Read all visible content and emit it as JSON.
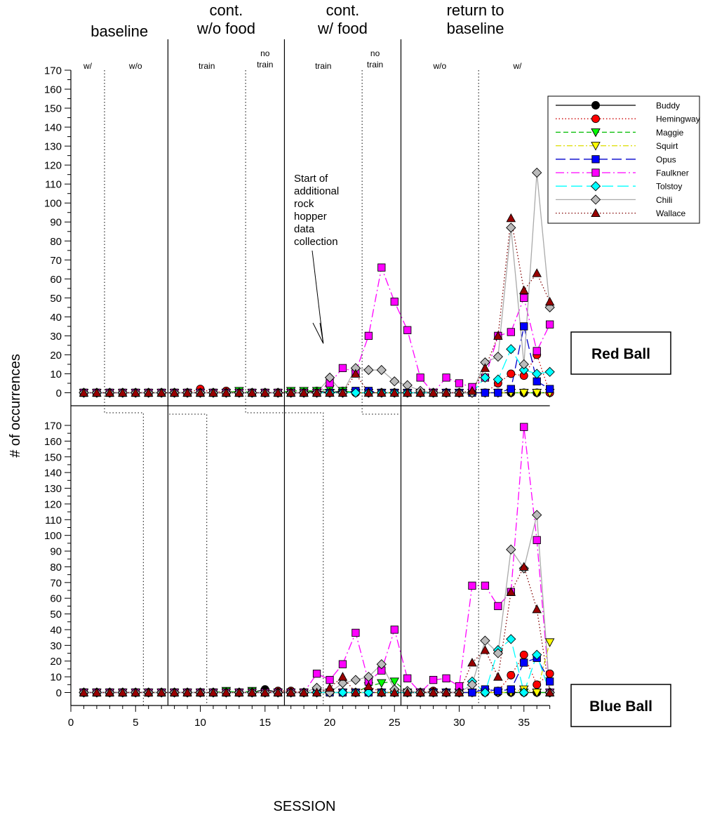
{
  "chart_data": {
    "type": "line",
    "xlabel": "SESSION",
    "ylabel": "# of occurrences",
    "xlim": [
      0,
      37
    ],
    "x_ticks": [
      0,
      5,
      10,
      15,
      20,
      25,
      30,
      35
    ],
    "ylim": [
      -6,
      170
    ],
    "y_ticks": [
      0,
      10,
      20,
      30,
      40,
      50,
      60,
      70,
      80,
      90,
      100,
      110,
      120,
      130,
      140,
      150,
      160,
      170
    ],
    "phases": [
      {
        "label": "baseline",
        "start": 0,
        "end": 7.5
      },
      {
        "label": "cont.\nw/o food",
        "start": 7.5,
        "end": 16.5
      },
      {
        "label": "cont.\nw/ food",
        "start": 16.5,
        "end": 25.5
      },
      {
        "label": "return to\nbaseline",
        "start": 25.5,
        "end": 37
      }
    ],
    "phase_boundaries": [
      7.5,
      16.5,
      25.5
    ],
    "subphases": [
      {
        "label": "w/",
        "center": 1.3
      },
      {
        "label": "w/o",
        "center": 5
      },
      {
        "label": "train",
        "center": 10.5
      },
      {
        "label": "no\ntrain",
        "center": 15
      },
      {
        "label": "train",
        "center": 19.5
      },
      {
        "label": "no\ntrain",
        "center": 23.5
      },
      {
        "label": "w/o",
        "center": 28.5
      },
      {
        "label": "w/",
        "center": 34.5
      }
    ],
    "annotation": {
      "text": "Start of\nadditional\nrock\nhopper\ndata\ncollection",
      "arrow_to_x": 19.5,
      "arrow_to_y": 26
    },
    "series": [
      {
        "name": "Buddy",
        "color": "#000000",
        "fill": "#000000",
        "marker": "circle",
        "dash": ""
      },
      {
        "name": "Hemingway",
        "color": "#cc0000",
        "fill": "#ff0000",
        "marker": "circle",
        "dash": "1.5,3"
      },
      {
        "name": "Maggie",
        "color": "#00bb00",
        "fill": "#00ff00",
        "marker": "triangle-down",
        "dash": "7,4"
      },
      {
        "name": "Squirt",
        "color": "#dddd00",
        "fill": "#ffff00",
        "marker": "triangle-down",
        "dash": "8,3,2,3"
      },
      {
        "name": "Opus",
        "color": "#0000cc",
        "fill": "#0000ff",
        "marker": "square",
        "dash": "14,6"
      },
      {
        "name": "Faulkner",
        "color": "#ff00ff",
        "fill": "#ff00ff",
        "marker": "square",
        "dash": "12,4,2,4"
      },
      {
        "name": "Tolstoy",
        "color": "#00ffff",
        "fill": "#00ffff",
        "marker": "diamond",
        "dash": "16,6"
      },
      {
        "name": "Chili",
        "color": "#aaaaaa",
        "fill": "#bbbbbb",
        "marker": "diamond",
        "dash": ""
      },
      {
        "name": "Wallace",
        "color": "#800000",
        "fill": "#990000",
        "marker": "triangle-up",
        "dash": "1.5,3"
      }
    ],
    "panels": [
      {
        "label": "Red Ball",
        "data": {
          "Buddy": [
            0,
            0,
            0,
            0,
            0,
            0,
            0,
            0,
            0,
            0,
            0,
            0,
            0,
            0,
            0,
            0,
            0,
            0,
            1,
            0,
            1,
            0,
            0,
            0,
            0,
            0,
            0,
            0,
            0,
            0,
            0,
            0,
            0,
            0,
            0,
            0,
            0
          ],
          "Hemingway": [
            0,
            0,
            0,
            0,
            0,
            0,
            0,
            0,
            0,
            2,
            0,
            1,
            0,
            0,
            0,
            0,
            0,
            0,
            0,
            0,
            0,
            0,
            0,
            0,
            0,
            0,
            0,
            0,
            0,
            0,
            0,
            0,
            5,
            10,
            9,
            20,
            0
          ],
          "Maggie": [
            0,
            0,
            0,
            0,
            0,
            0,
            0,
            0,
            0,
            0,
            0,
            0,
            1,
            0,
            0,
            0,
            1,
            1,
            1,
            2,
            1,
            0,
            0,
            0,
            0,
            0,
            0,
            0,
            0,
            0,
            0,
            0,
            0,
            0,
            0,
            0,
            0
          ],
          "Squirt": [
            0,
            0,
            0,
            0,
            0,
            0,
            0,
            0,
            0,
            0,
            0,
            0,
            0,
            0,
            0,
            0,
            0,
            0,
            0,
            0,
            0,
            0,
            0,
            0,
            0,
            0,
            0,
            0,
            0,
            0,
            0,
            0,
            0,
            0,
            0,
            0,
            0
          ],
          "Opus": [
            0,
            0,
            0,
            0,
            0,
            0,
            0,
            0,
            0,
            0,
            0,
            0,
            0,
            0,
            0,
            0,
            0,
            0,
            0,
            0,
            0,
            1,
            1,
            0,
            0,
            0,
            0,
            0,
            0,
            0,
            0,
            0,
            0,
            2,
            35,
            6,
            2
          ],
          "Faulkner": [
            0,
            0,
            0,
            0,
            0,
            0,
            0,
            0,
            0,
            0,
            0,
            0,
            0,
            0,
            0,
            0,
            0,
            0,
            0,
            5,
            13,
            11,
            30,
            66,
            48,
            33,
            8,
            0,
            8,
            5,
            3,
            8,
            30,
            32,
            50,
            22,
            36
          ],
          "Tolstoy": [
            0,
            0,
            0,
            0,
            0,
            0,
            0,
            0,
            0,
            0,
            0,
            0,
            0,
            0,
            0,
            0,
            0,
            0,
            0,
            0,
            0,
            0,
            0,
            0,
            0,
            0,
            0,
            0,
            0,
            0,
            0,
            8,
            7,
            23,
            12,
            10,
            11
          ],
          "Chili": [
            0,
            0,
            0,
            0,
            0,
            0,
            0,
            0,
            0,
            0,
            0,
            0,
            0,
            0,
            0,
            0,
            0,
            0,
            0,
            8,
            0,
            13,
            12,
            12,
            6,
            4,
            1,
            0,
            0,
            0,
            0,
            16,
            19,
            87,
            15,
            116,
            45
          ],
          "Wallace": [
            0,
            0,
            0,
            0,
            0,
            0,
            0,
            0,
            0,
            0,
            0,
            0,
            0,
            0,
            0,
            0,
            0,
            0,
            0,
            0,
            0,
            10,
            0,
            0,
            0,
            0,
            0,
            0,
            0,
            0,
            1,
            13,
            30,
            92,
            54,
            63,
            48
          ]
        }
      },
      {
        "label": "Blue Ball",
        "data": {
          "Buddy": [
            0,
            0,
            0,
            0,
            0,
            0,
            0,
            0,
            0,
            0,
            0,
            0,
            0,
            0,
            2,
            0,
            0,
            0,
            0,
            0,
            0,
            0,
            0,
            0,
            0,
            0,
            0,
            0,
            0,
            0,
            0,
            0,
            0,
            0,
            0,
            0,
            0
          ],
          "Hemingway": [
            0,
            0,
            0,
            0,
            0,
            0,
            0,
            0,
            0,
            0,
            0,
            0,
            0,
            0,
            0,
            1,
            1,
            0,
            0,
            0,
            0,
            0,
            0,
            0,
            0,
            0,
            0,
            1,
            0,
            0,
            0,
            0,
            1,
            11,
            24,
            5,
            12
          ],
          "Maggie": [
            0,
            0,
            0,
            0,
            0,
            0,
            0,
            0,
            0,
            0,
            0,
            1,
            0,
            1,
            0,
            0,
            0,
            0,
            0,
            0,
            0,
            0,
            4,
            6,
            7,
            0,
            0,
            0,
            0,
            0,
            0,
            0,
            0,
            0,
            0,
            0,
            0
          ],
          "Squirt": [
            0,
            0,
            0,
            0,
            0,
            0,
            0,
            0,
            0,
            0,
            0,
            0,
            0,
            0,
            0,
            0,
            0,
            0,
            0,
            0,
            0,
            0,
            0,
            0,
            0,
            0,
            0,
            0,
            0,
            0,
            0,
            0,
            0,
            0,
            2,
            0,
            32
          ],
          "Opus": [
            0,
            0,
            0,
            0,
            0,
            0,
            0,
            0,
            0,
            0,
            0,
            0,
            0,
            0,
            0,
            0,
            0,
            0,
            0,
            0,
            0,
            0,
            0,
            0,
            0,
            0,
            0,
            0,
            0,
            0,
            0,
            2,
            1,
            2,
            19,
            22,
            7
          ],
          "Faulkner": [
            0,
            0,
            0,
            0,
            0,
            0,
            0,
            0,
            0,
            0,
            0,
            0,
            0,
            0,
            0,
            0,
            0,
            0,
            12,
            8,
            18,
            38,
            7,
            14,
            40,
            9,
            0,
            8,
            9,
            4,
            68,
            68,
            55,
            64,
            169,
            97,
            0
          ],
          "Tolstoy": [
            0,
            0,
            0,
            0,
            0,
            0,
            0,
            0,
            0,
            0,
            0,
            0,
            0,
            0,
            0,
            0,
            0,
            0,
            0,
            0,
            0,
            0,
            0,
            0,
            0,
            0,
            0,
            0,
            0,
            0,
            7,
            0,
            27,
            34,
            0,
            24,
            0
          ],
          "Chili": [
            0,
            0,
            0,
            0,
            0,
            0,
            0,
            0,
            0,
            0,
            0,
            0,
            0,
            0,
            0,
            0,
            0,
            0,
            3,
            0,
            6,
            8,
            10,
            18,
            2,
            1,
            0,
            0,
            0,
            0,
            5,
            33,
            25,
            91,
            79,
            113,
            0
          ],
          "Wallace": [
            0,
            0,
            0,
            0,
            0,
            0,
            0,
            0,
            0,
            0,
            0,
            0,
            0,
            0,
            0,
            0,
            0,
            0,
            0,
            3,
            10,
            0,
            4,
            0,
            0,
            0,
            0,
            0,
            0,
            0,
            19,
            27,
            10,
            64,
            80,
            53,
            0
          ]
        }
      }
    ]
  }
}
